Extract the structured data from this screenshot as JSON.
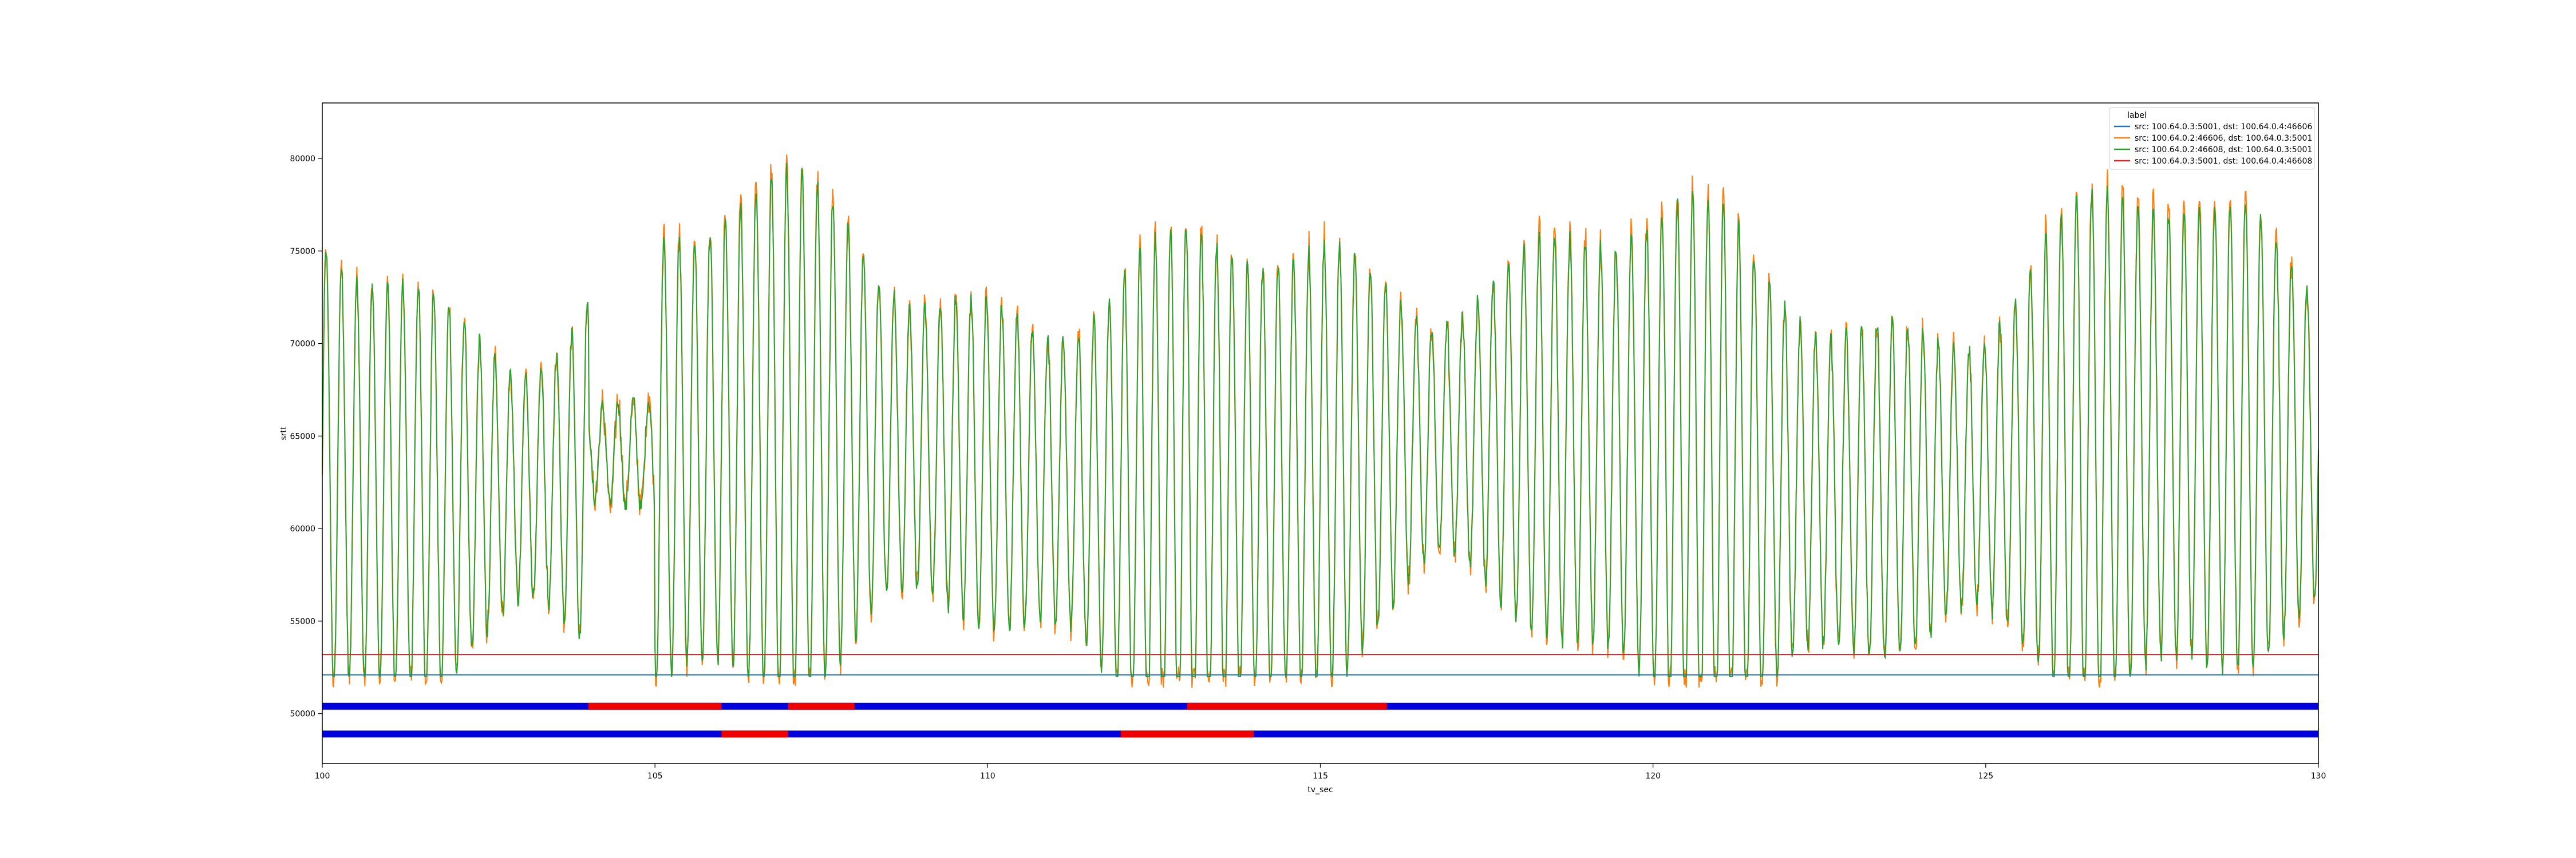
{
  "chart_data": {
    "type": "line",
    "xlabel": "tv_sec",
    "ylabel": "srtt",
    "xlim": [
      100,
      130
    ],
    "ylim": [
      47300,
      83000
    ],
    "x_ticks": [
      100,
      105,
      110,
      115,
      120,
      125,
      130
    ],
    "y_ticks": [
      50000,
      55000,
      60000,
      65000,
      70000,
      75000,
      80000
    ],
    "grid": false,
    "legend": {
      "placement": "top-right",
      "title": "label",
      "entries": [
        {
          "name": "src: 100.64.0.3:5001, dst: 100.64.0.4:46606",
          "color": "#1f77b4"
        },
        {
          "name": "src: 100.64.0.2:46606, dst: 100.64.0.3:5001",
          "color": "#ff7f0e"
        },
        {
          "name": "src: 100.64.0.2:46608, dst: 100.64.0.3:5001",
          "color": "#2ca02c"
        },
        {
          "name": "src: 100.64.0.3:5001, dst: 100.64.0.4:46608",
          "color": "#d62728"
        }
      ]
    },
    "series": [
      {
        "name": "src: 100.64.0.3:5001, dst: 100.64.0.4:46606",
        "color": "#1f77b4",
        "constant": 52100
      },
      {
        "name": "src: 100.64.0.2:46606, dst: 100.64.0.3:5001",
        "color": "#ff7f0e",
        "oscillation": {
          "min": 52000,
          "max": 81000,
          "approx_cycles": 130
        }
      },
      {
        "name": "src: 100.64.0.2:46608, dst: 100.64.0.3:5001",
        "color": "#2ca02c",
        "oscillation": {
          "min": 52000,
          "max": 80500,
          "approx_cycles": 130
        }
      },
      {
        "name": "src: 100.64.0.3:5001, dst: 100.64.0.4:46608",
        "color": "#d62728",
        "constant": 53200
      }
    ],
    "state_bars": [
      {
        "y": 50400,
        "default_color": "#0000dd",
        "alt_color": "#ee0000",
        "alt_intervals": [
          [
            104.0,
            106.0
          ],
          [
            107.0,
            108.0
          ],
          [
            113.0,
            116.0
          ]
        ]
      },
      {
        "y": 48900,
        "default_color": "#0000dd",
        "alt_color": "#ee0000",
        "alt_intervals": [
          [
            106.0,
            107.0
          ],
          [
            112.0,
            114.0
          ]
        ]
      }
    ]
  }
}
